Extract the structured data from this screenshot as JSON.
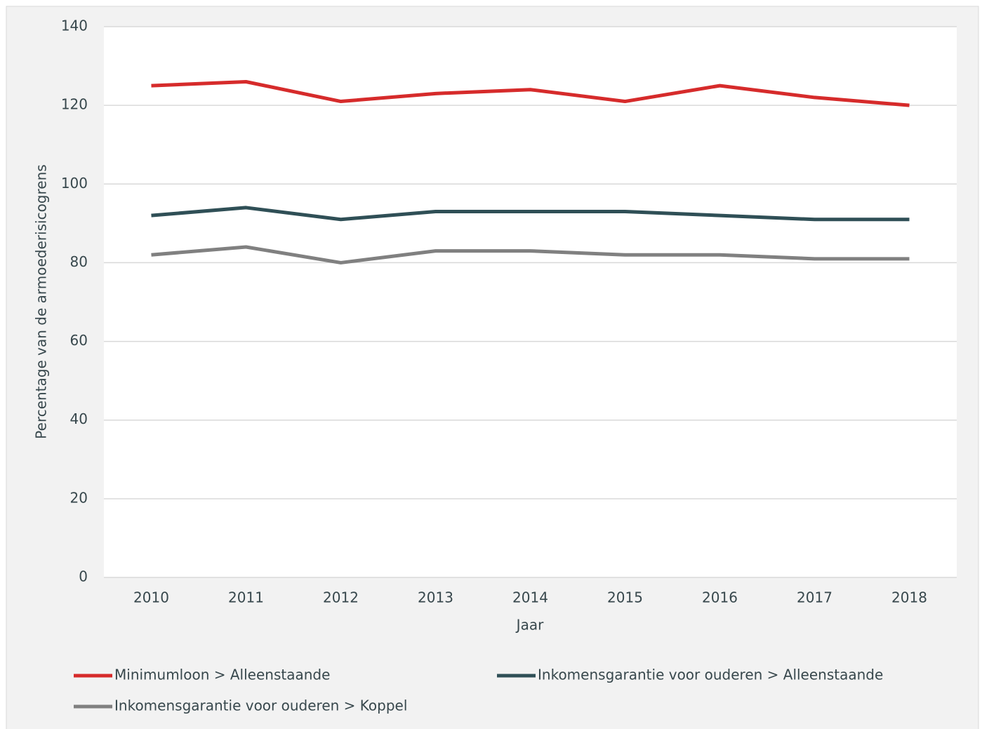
{
  "chart_data": {
    "type": "line",
    "xlabel": "Jaar",
    "ylabel": "Percentage van de armoederisicogrens",
    "categories": [
      "2010",
      "2011",
      "2012",
      "2013",
      "2014",
      "2015",
      "2016",
      "2017",
      "2018"
    ],
    "series": [
      {
        "name": "Minimumloon > Alleenstaande",
        "color": "#d62b2b",
        "values": [
          125,
          126,
          121,
          123,
          124,
          121,
          125,
          122,
          120
        ]
      },
      {
        "name": "Inkomensgarantie voor ouderen > Alleenstaande",
        "color": "#2f4f56",
        "values": [
          92,
          94,
          91,
          93,
          93,
          93,
          92,
          91,
          91
        ]
      },
      {
        "name": "Inkomensgarantie voor ouderen > Koppel",
        "color": "#808080",
        "values": [
          82,
          84,
          80,
          83,
          83,
          82,
          82,
          81,
          81
        ]
      }
    ],
    "ylim": [
      0,
      140
    ],
    "yticks": [
      0,
      20,
      40,
      60,
      80,
      100,
      120,
      140
    ],
    "grid": true,
    "legend": "bottom"
  }
}
